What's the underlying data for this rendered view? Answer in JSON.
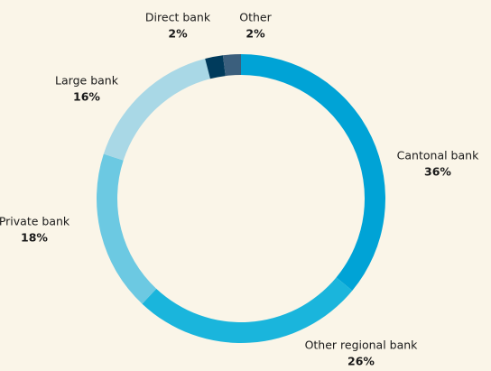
{
  "chart_data": {
    "type": "donut",
    "categories": [
      "Cantonal bank",
      "Other regional bank",
      "Private bank",
      "Large bank",
      "Direct bank",
      "Other"
    ],
    "values": [
      36,
      26,
      18,
      16,
      2,
      2
    ],
    "value_labels": [
      "36%",
      "26%",
      "18%",
      "16%",
      "2%",
      "2%"
    ],
    "colors": [
      "#00a3d6",
      "#1ab5dc",
      "#6cc9e2",
      "#a9d8e6",
      "#003b5c",
      "#3b5f7d"
    ]
  }
}
